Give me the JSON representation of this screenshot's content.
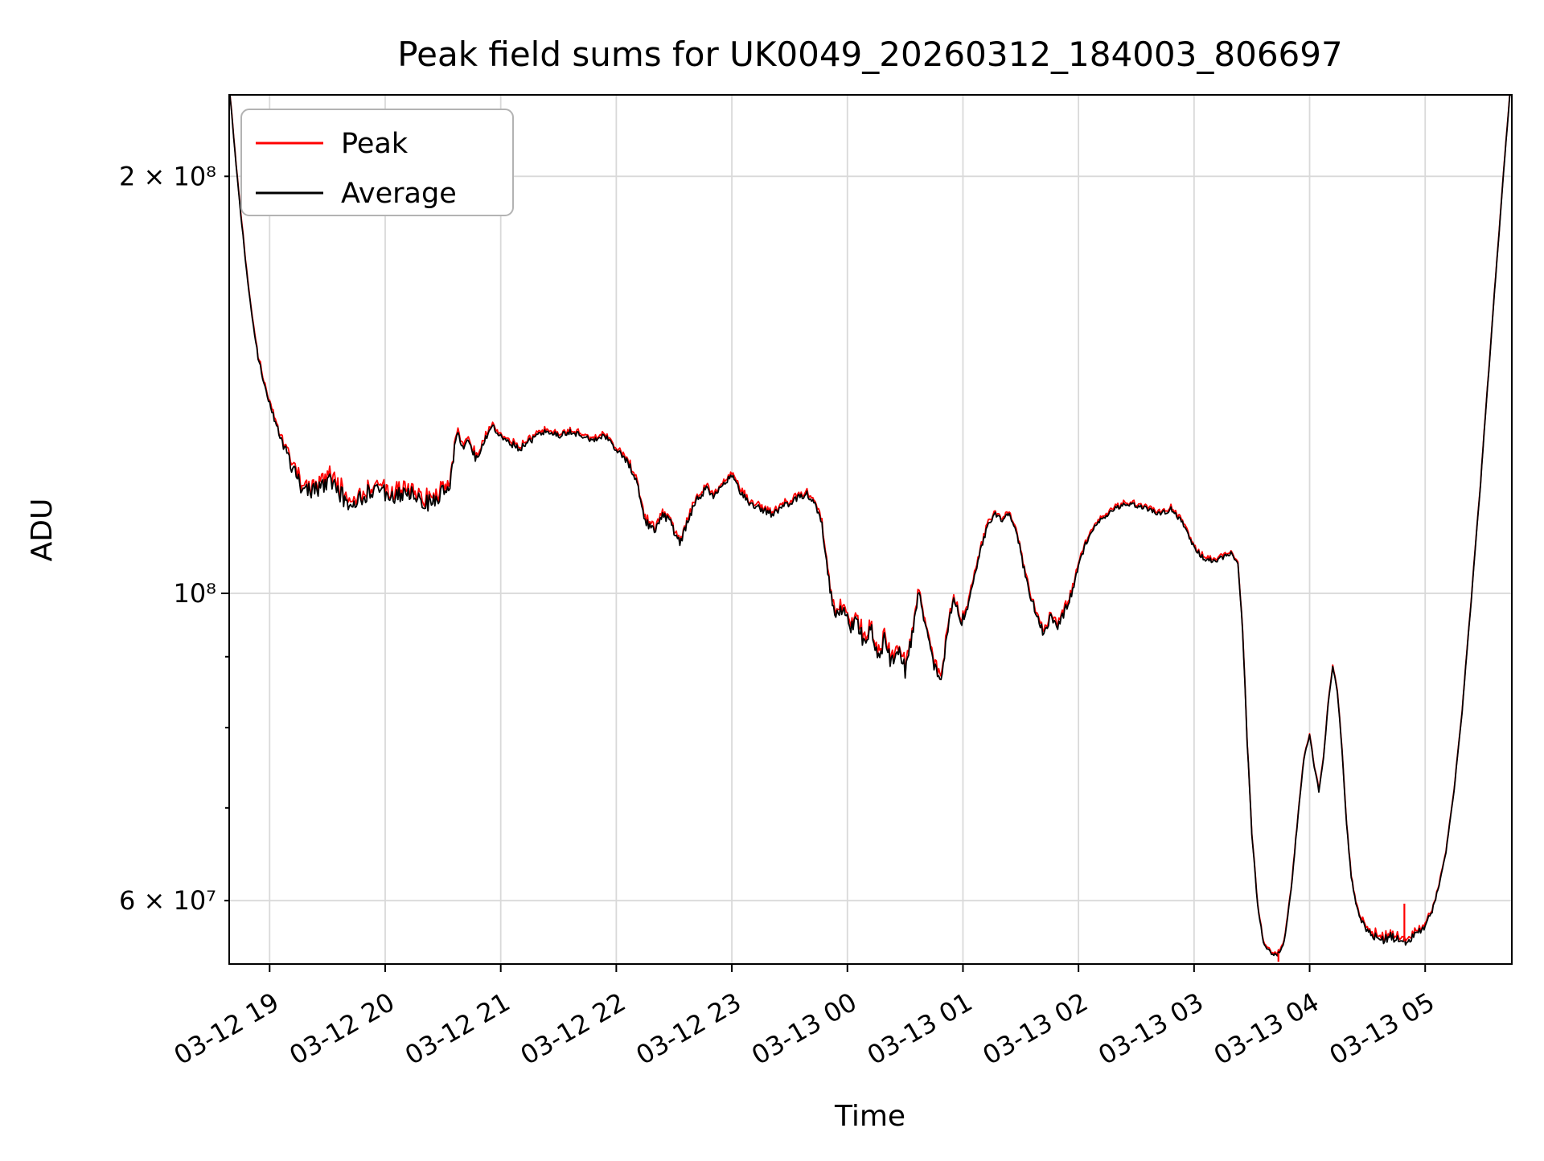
{
  "chart_data": {
    "type": "line",
    "title": "Peak field sums for UK0049_20260312_184003_806697",
    "xlabel": "Time",
    "ylabel": "ADU",
    "yscale": "log",
    "ylim": [
      54000000.0,
      229000000.0
    ],
    "xlim_hours": [
      0.65,
      11.75
    ],
    "x_unit_note": "hours since 2026-03-12 18:00 (read from tick labels)",
    "grid": true,
    "legend_position": "upper left",
    "legend": [
      {
        "name": "Peak",
        "color": "#ff0000"
      },
      {
        "name": "Average",
        "color": "#000000"
      }
    ],
    "x_ticks": [
      {
        "hour": 1,
        "label": "03-12 19"
      },
      {
        "hour": 2,
        "label": "03-12 20"
      },
      {
        "hour": 3,
        "label": "03-12 21"
      },
      {
        "hour": 4,
        "label": "03-12 22"
      },
      {
        "hour": 5,
        "label": "03-12 23"
      },
      {
        "hour": 6,
        "label": "03-13 00"
      },
      {
        "hour": 7,
        "label": "03-13 01"
      },
      {
        "hour": 8,
        "label": "03-13 02"
      },
      {
        "hour": 9,
        "label": "03-13 03"
      },
      {
        "hour": 10,
        "label": "03-13 04"
      },
      {
        "hour": 11,
        "label": "03-13 05"
      }
    ],
    "y_ticks": [
      {
        "value": 60000000.0,
        "label": "6 × 10⁷",
        "major": false
      },
      {
        "value": 100000000.0,
        "label": "10⁸",
        "major": true
      },
      {
        "value": 200000000.0,
        "label": "2 × 10⁸",
        "major": false
      }
    ],
    "y_minor_ticks": [
      70000000.0,
      80000000.0,
      90000000.0
    ],
    "series_keypoints_note": "Average series keyframes: [t_hours, ADU, noise_fraction]; Peak ≈ Average plus small positive offset",
    "series_keypoints": [
      [
        0.65,
        232000000.0,
        0.002
      ],
      [
        0.7,
        208000000.0,
        0.002
      ],
      [
        0.75,
        188000000.0,
        0.003
      ],
      [
        0.8,
        171000000.0,
        0.003
      ],
      [
        0.85,
        158000000.0,
        0.003
      ],
      [
        0.9,
        148000000.0,
        0.004
      ],
      [
        0.95,
        142000000.0,
        0.005
      ],
      [
        1.0,
        137000000.0,
        0.006
      ],
      [
        1.05,
        133000000.0,
        0.007
      ],
      [
        1.1,
        129500000.0,
        0.008
      ],
      [
        1.15,
        126000000.0,
        0.01
      ],
      [
        1.2,
        122500000.0,
        0.013
      ],
      [
        1.28,
        119500000.0,
        0.015
      ],
      [
        1.36,
        118000000.0,
        0.015
      ],
      [
        1.44,
        119000000.0,
        0.015
      ],
      [
        1.52,
        120500000.0,
        0.014
      ],
      [
        1.6,
        118500000.0,
        0.015
      ],
      [
        1.68,
        116000000.0,
        0.015
      ],
      [
        1.76,
        116500000.0,
        0.015
      ],
      [
        1.84,
        118000000.0,
        0.015
      ],
      [
        1.92,
        119000000.0,
        0.014
      ],
      [
        2.0,
        118000000.0,
        0.015
      ],
      [
        2.08,
        117000000.0,
        0.015
      ],
      [
        2.16,
        118500000.0,
        0.014
      ],
      [
        2.24,
        118000000.0,
        0.014
      ],
      [
        2.32,
        117000000.0,
        0.015
      ],
      [
        2.4,
        116000000.0,
        0.015
      ],
      [
        2.48,
        118000000.0,
        0.013
      ],
      [
        2.56,
        120000000.0,
        0.011
      ],
      [
        2.62,
        130500000.0,
        0.007
      ],
      [
        2.67,
        127000000.0,
        0.008
      ],
      [
        2.72,
        129000000.0,
        0.007
      ],
      [
        2.78,
        125500000.0,
        0.008
      ],
      [
        2.85,
        128000000.0,
        0.007
      ],
      [
        2.92,
        132000000.0,
        0.005
      ],
      [
        3.0,
        130000000.0,
        0.006
      ],
      [
        3.08,
        128500000.0,
        0.006
      ],
      [
        3.16,
        127000000.0,
        0.006
      ],
      [
        3.24,
        128500000.0,
        0.006
      ],
      [
        3.32,
        130000000.0,
        0.005
      ],
      [
        3.4,
        131000000.0,
        0.004
      ],
      [
        3.5,
        130000000.0,
        0.005
      ],
      [
        3.6,
        130800000.0,
        0.004
      ],
      [
        3.7,
        130000000.0,
        0.005
      ],
      [
        3.8,
        129000000.0,
        0.005
      ],
      [
        3.9,
        130000000.0,
        0.004
      ],
      [
        4.0,
        127000000.0,
        0.005
      ],
      [
        4.1,
        124500000.0,
        0.006
      ],
      [
        4.18,
        120000000.0,
        0.007
      ],
      [
        4.25,
        113000000.0,
        0.008
      ],
      [
        4.33,
        110500000.0,
        0.008
      ],
      [
        4.4,
        114000000.0,
        0.007
      ],
      [
        4.48,
        112000000.0,
        0.008
      ],
      [
        4.55,
        108500000.0,
        0.008
      ],
      [
        4.62,
        113000000.0,
        0.007
      ],
      [
        4.7,
        117000000.0,
        0.006
      ],
      [
        4.78,
        119000000.0,
        0.006
      ],
      [
        4.85,
        117500000.0,
        0.006
      ],
      [
        4.93,
        120000000.0,
        0.005
      ],
      [
        5.0,
        121500000.0,
        0.005
      ],
      [
        5.07,
        118500000.0,
        0.006
      ],
      [
        5.15,
        116000000.0,
        0.006
      ],
      [
        5.25,
        115000000.0,
        0.006
      ],
      [
        5.35,
        114000000.0,
        0.006
      ],
      [
        5.45,
        115500000.0,
        0.006
      ],
      [
        5.55,
        117000000.0,
        0.006
      ],
      [
        5.65,
        118000000.0,
        0.005
      ],
      [
        5.72,
        116000000.0,
        0.005
      ],
      [
        5.78,
        112000000.0,
        0.006
      ],
      [
        5.84,
        102000000.0,
        0.01
      ],
      [
        5.9,
        96000000.0,
        0.013
      ],
      [
        5.96,
        98000000.0,
        0.013
      ],
      [
        6.02,
        94000000.0,
        0.014
      ],
      [
        6.08,
        96000000.0,
        0.013
      ],
      [
        6.14,
        92000000.0,
        0.014
      ],
      [
        6.2,
        94500000.0,
        0.013
      ],
      [
        6.26,
        90000000.0,
        0.014
      ],
      [
        6.32,
        92500000.0,
        0.013
      ],
      [
        6.38,
        89000000.0,
        0.014
      ],
      [
        6.44,
        91000000.0,
        0.013
      ],
      [
        6.5,
        88000000.0,
        0.013
      ],
      [
        6.56,
        93000000.0,
        0.011
      ],
      [
        6.62,
        100500000.0,
        0.007
      ],
      [
        6.68,
        94000000.0,
        0.01
      ],
      [
        6.74,
        89000000.0,
        0.012
      ],
      [
        6.8,
        86000000.0,
        0.012
      ],
      [
        6.86,
        93000000.0,
        0.01
      ],
      [
        6.92,
        99500000.0,
        0.007
      ],
      [
        6.98,
        95000000.0,
        0.009
      ],
      [
        7.04,
        98000000.0,
        0.008
      ],
      [
        7.1,
        103000000.0,
        0.006
      ],
      [
        7.16,
        108000000.0,
        0.005
      ],
      [
        7.22,
        112500000.0,
        0.005
      ],
      [
        7.28,
        114000000.0,
        0.004
      ],
      [
        7.34,
        113000000.0,
        0.005
      ],
      [
        7.4,
        114000000.0,
        0.004
      ],
      [
        7.46,
        111000000.0,
        0.005
      ],
      [
        7.52,
        105000000.0,
        0.007
      ],
      [
        7.58,
        100000000.0,
        0.008
      ],
      [
        7.64,
        96000000.0,
        0.008
      ],
      [
        7.7,
        93500000.0,
        0.008
      ],
      [
        7.76,
        96000000.0,
        0.008
      ],
      [
        7.82,
        94500000.0,
        0.008
      ],
      [
        7.88,
        97000000.0,
        0.007
      ],
      [
        7.94,
        100000000.0,
        0.007
      ],
      [
        8.0,
        104500000.0,
        0.006
      ],
      [
        8.07,
        109000000.0,
        0.005
      ],
      [
        8.14,
        112000000.0,
        0.004
      ],
      [
        8.22,
        113500000.0,
        0.004
      ],
      [
        8.3,
        115000000.0,
        0.004
      ],
      [
        8.4,
        116000000.0,
        0.004
      ],
      [
        8.5,
        115700000.0,
        0.004
      ],
      [
        8.6,
        115000000.0,
        0.004
      ],
      [
        8.7,
        114000000.0,
        0.004
      ],
      [
        8.8,
        115000000.0,
        0.004
      ],
      [
        8.9,
        112500000.0,
        0.004
      ],
      [
        9.0,
        108000000.0,
        0.004
      ],
      [
        9.08,
        106000000.0,
        0.004
      ],
      [
        9.16,
        105500000.0,
        0.004
      ],
      [
        9.24,
        106000000.0,
        0.004
      ],
      [
        9.32,
        107000000.0,
        0.003
      ],
      [
        9.38,
        105000000.0,
        0.003
      ],
      [
        9.42,
        94000000.0,
        0.002
      ],
      [
        9.46,
        78000000.0,
        0.002
      ],
      [
        9.5,
        67000000.0,
        0.002
      ],
      [
        9.55,
        59500000.0,
        0.002
      ],
      [
        9.6,
        56000000.0,
        0.002
      ],
      [
        9.66,
        55000000.0,
        0.003
      ],
      [
        9.72,
        54800000.0,
        0.003
      ],
      [
        9.78,
        56000000.0,
        0.003
      ],
      [
        9.84,
        61000000.0,
        0.003
      ],
      [
        9.9,
        69000000.0,
        0.002
      ],
      [
        9.95,
        76000000.0,
        0.002
      ],
      [
        10.0,
        79000000.0,
        0.002
      ],
      [
        10.04,
        75000000.0,
        0.002
      ],
      [
        10.08,
        72000000.0,
        0.002
      ],
      [
        10.12,
        76000000.0,
        0.002
      ],
      [
        10.16,
        83000000.0,
        0.002
      ],
      [
        10.2,
        88500000.0,
        0.002
      ],
      [
        10.24,
        85000000.0,
        0.002
      ],
      [
        10.28,
        77000000.0,
        0.003
      ],
      [
        10.32,
        68000000.0,
        0.003
      ],
      [
        10.36,
        62500000.0,
        0.003
      ],
      [
        10.4,
        59500000.0,
        0.004
      ],
      [
        10.45,
        58000000.0,
        0.005
      ],
      [
        10.5,
        57000000.0,
        0.007
      ],
      [
        10.6,
        56200000.0,
        0.008
      ],
      [
        10.7,
        56500000.0,
        0.008
      ],
      [
        10.8,
        56000000.0,
        0.008
      ],
      [
        10.9,
        56500000.0,
        0.007
      ],
      [
        11.0,
        57500000.0,
        0.005
      ],
      [
        11.06,
        59000000.0,
        0.004
      ],
      [
        11.12,
        61500000.0,
        0.003
      ],
      [
        11.18,
        65000000.0,
        0.002
      ],
      [
        11.25,
        72000000.0,
        0.001
      ],
      [
        11.32,
        82000000.0,
        0.001
      ],
      [
        11.4,
        99000000.0,
        0.001
      ],
      [
        11.48,
        120000000.0,
        0.001
      ],
      [
        11.56,
        148000000.0,
        0.001
      ],
      [
        11.64,
        182000000.0,
        0.001
      ],
      [
        11.72,
        222000000.0,
        0.001
      ],
      [
        11.78,
        255000000.0,
        0.001
      ]
    ],
    "peak_spikes": [
      {
        "t": 9.73,
        "value": 54200000.0
      },
      {
        "t": 10.82,
        "value": 59700000.0
      }
    ]
  }
}
